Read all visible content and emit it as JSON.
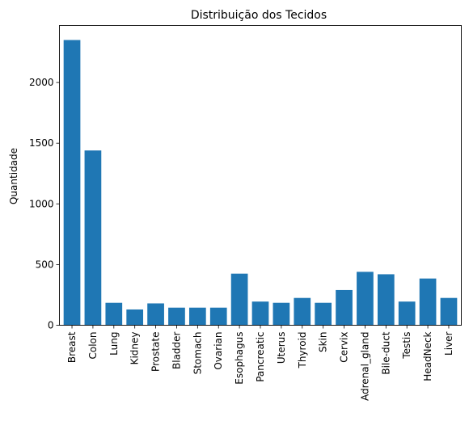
{
  "chart_data": {
    "type": "bar",
    "title": "Distribuição dos Tecidos",
    "xlabel": "",
    "ylabel": "Quantidade",
    "categories": [
      "Breast",
      "Colon",
      "Lung",
      "Kidney",
      "Prostate",
      "Bladder",
      "Stomach",
      "Ovarian",
      "Esophagus",
      "Pancreatic",
      "Uterus",
      "Thyroid",
      "Skin",
      "Cervix",
      "Adrenal_gland",
      "Bile-duct",
      "Testis",
      "HeadNeck",
      "Liver"
    ],
    "values": [
      2350,
      1440,
      185,
      130,
      180,
      145,
      145,
      145,
      425,
      195,
      185,
      225,
      185,
      290,
      440,
      420,
      195,
      385,
      225
    ],
    "ylim": [
      0,
      2470
    ],
    "yticks": [
      0,
      500,
      1000,
      1500,
      2000
    ],
    "bar_color": "#1f77b4",
    "grid": false,
    "legend": "none"
  }
}
